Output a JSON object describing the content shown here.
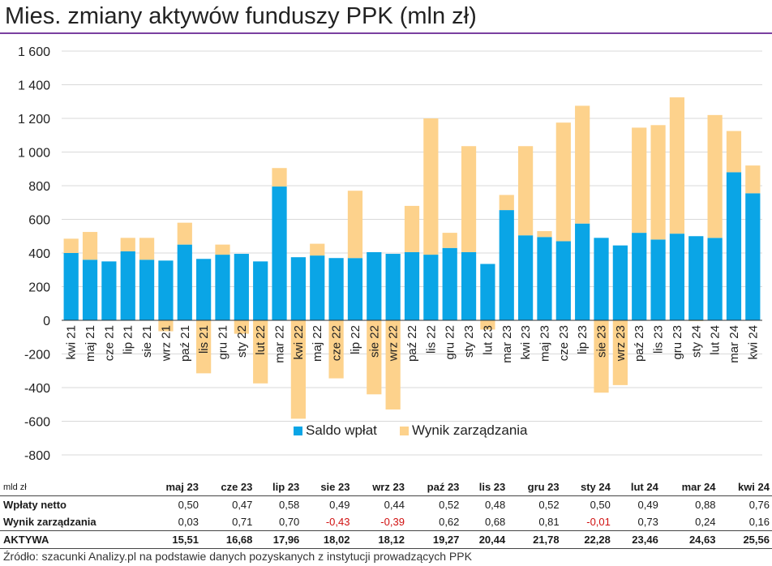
{
  "title": "Mies. zmiany aktywów funduszy PPK (mln zł)",
  "source": "Źródło: szacunki Analizy.pl na podstawie danych pozyskanych z instytucji prowadzących PPK",
  "colors": {
    "saldo": "#0aa5e6",
    "wynik": "#fdd28c",
    "accent": "#7a3fa0",
    "negative": "#d01010"
  },
  "chart_data": {
    "type": "bar",
    "stacked": true,
    "categories": [
      "kwi 21",
      "maj 21",
      "cze 21",
      "lip 21",
      "sie 21",
      "wrz 21",
      "paź 21",
      "lis 21",
      "gru 21",
      "sty 22",
      "lut 22",
      "mar 22",
      "kwi 22",
      "maj 22",
      "cze 22",
      "lip 22",
      "sie 22",
      "wrz 22",
      "paź 22",
      "lis 22",
      "gru 22",
      "sty 23",
      "lut 23",
      "mar 23",
      "kwi 23",
      "maj 23",
      "cze 23",
      "lip 23",
      "sie 23",
      "wrz 23",
      "paź 23",
      "lis 23",
      "gru 23",
      "sty 24",
      "lut 24",
      "mar 24",
      "kwi 24"
    ],
    "series": [
      {
        "name": "Saldo wpłat",
        "values": [
          400,
          360,
          350,
          410,
          360,
          355,
          450,
          365,
          390,
          395,
          350,
          795,
          375,
          385,
          370,
          370,
          405,
          395,
          405,
          390,
          430,
          405,
          335,
          655,
          505,
          495,
          470,
          575,
          490,
          445,
          520,
          480,
          515,
          500,
          490,
          880,
          755
        ]
      },
      {
        "name": "Wynik zarządzania",
        "values": [
          85,
          165,
          0,
          80,
          130,
          -65,
          130,
          -315,
          60,
          -80,
          -375,
          110,
          -585,
          70,
          -345,
          400,
          -440,
          -530,
          275,
          810,
          90,
          630,
          -55,
          90,
          530,
          35,
          705,
          700,
          -430,
          -385,
          625,
          680,
          810,
          -5,
          730,
          245,
          165
        ]
      }
    ],
    "ylim": [
      -800,
      1600
    ],
    "yticks": [
      "-800",
      "-600",
      "-400",
      "-200",
      "0",
      "200",
      "400",
      "600",
      "800",
      "1 000",
      "1 200",
      "1 400",
      "1 600"
    ],
    "grid": true,
    "legend": "bottom-right"
  },
  "table": {
    "unit_label": "mld zł",
    "columns": [
      "maj 23",
      "cze 23",
      "lip 23",
      "sie 23",
      "wrz 23",
      "paź 23",
      "lis 23",
      "gru 23",
      "sty 24",
      "lut 24",
      "mar 24",
      "kwi 24"
    ],
    "rows": [
      {
        "label": "Wpłaty netto",
        "values": [
          "0,50",
          "0,47",
          "0,58",
          "0,49",
          "0,44",
          "0,52",
          "0,48",
          "0,52",
          "0,50",
          "0,49",
          "0,88",
          "0,76"
        ]
      },
      {
        "label": "Wynik zarządzania",
        "values": [
          "0,03",
          "0,71",
          "0,70",
          "-0,43",
          "-0,39",
          "0,62",
          "0,68",
          "0,81",
          "-0,01",
          "0,73",
          "0,24",
          "0,16"
        ]
      },
      {
        "label": "AKTYWA",
        "values": [
          "15,51",
          "16,68",
          "17,96",
          "18,02",
          "18,12",
          "19,27",
          "20,44",
          "21,78",
          "22,28",
          "23,46",
          "24,63",
          "25,56"
        ]
      }
    ]
  }
}
